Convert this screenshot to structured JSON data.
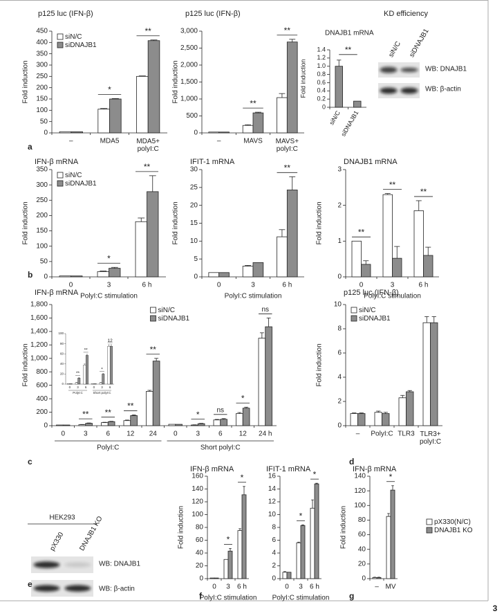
{
  "chart_data": [
    {
      "type": "bar",
      "title": "p125 luc (IFN-β)",
      "ylabel": "Fold induction",
      "categories": [
        "–",
        "MDA5",
        "MDA5+ polyI:C"
      ],
      "series": [
        {
          "name": "siN/C",
          "color": "#ffffff",
          "values": [
            5,
            105,
            250
          ],
          "errors": [
            0,
            3,
            2
          ]
        },
        {
          "name": "siDNAJB1",
          "color": "#8c8c8c",
          "values": [
            5,
            150,
            408
          ],
          "errors": [
            0,
            2,
            3
          ]
        }
      ],
      "significance": [
        null,
        "*",
        "**"
      ],
      "ylim": [
        0,
        450
      ],
      "yticks": [
        0,
        50,
        100,
        150,
        200,
        250,
        300,
        350,
        400,
        450
      ],
      "legend": "upper left"
    },
    {
      "type": "bar",
      "title": "p125 luc (IFN-β)",
      "ylabel": "Fold induction",
      "categories": [
        "–",
        "MAVS",
        "MAVS+ polyI:C"
      ],
      "series": [
        {
          "color": "#ffffff",
          "values": [
            25,
            220,
            1040
          ],
          "errors": [
            0,
            20,
            120
          ]
        },
        {
          "color": "#8c8c8c",
          "values": [
            25,
            590,
            2680
          ],
          "errors": [
            0,
            20,
            80
          ]
        }
      ],
      "significance": [
        null,
        "**",
        "**"
      ],
      "ylim": [
        0,
        3000
      ],
      "yticks": [
        0,
        500,
        {
          "value": 1000,
          "label": "1,000"
        },
        {
          "value": 1500,
          "label": "1,500"
        },
        {
          "value": 2000,
          "label": "2,000"
        },
        {
          "value": 2500,
          "label": "2,500"
        },
        {
          "value": 3000,
          "label": "3,000"
        }
      ]
    },
    {
      "type": "bar",
      "title": "DNAJB1 mRNA",
      "ylabel": "Fold induction",
      "categories": [
        "siN/C",
        "siDNAJB1"
      ],
      "series": [
        {
          "color": "#8c8c8c",
          "values": [
            1.0,
            0.15
          ],
          "errors": [
            0.15,
            0
          ]
        }
      ],
      "comparison": "**",
      "ylim": [
        0,
        1.4
      ],
      "yticks": [
        0,
        0.2,
        0.4,
        0.6,
        0.8,
        {
          "value": 1,
          "label": "1.0"
        },
        1.2,
        1.4
      ]
    },
    {
      "type": "bar",
      "title": "IFN-β mRNA",
      "ylabel": "Fold induction",
      "xlabel": "PolyI:C stimulation",
      "categories": [
        "0",
        "3",
        "6 h"
      ],
      "series": [
        {
          "name": "siN/C",
          "color": "#ffffff",
          "values": [
            3,
            17,
            180
          ],
          "errors": [
            0,
            2,
            12
          ]
        },
        {
          "name": "siDNAJB1",
          "color": "#8c8c8c",
          "values": [
            3,
            28,
            278
          ],
          "errors": [
            0,
            3,
            52
          ]
        }
      ],
      "significance": [
        null,
        "*",
        "**"
      ],
      "ylim": [
        0,
        350
      ],
      "yticks": [
        0,
        50,
        100,
        150,
        200,
        250,
        300,
        350
      ],
      "legend": "upper left"
    },
    {
      "type": "bar",
      "title": "IFIT-1 mRNA",
      "ylabel": "Fold induction",
      "xlabel": "PolyI:C stimulation",
      "categories": [
        "0",
        "3",
        "6 h"
      ],
      "series": [
        {
          "color": "#ffffff",
          "values": [
            1.2,
            3,
            11.2
          ],
          "errors": [
            0,
            0.2,
            2
          ]
        },
        {
          "color": "#8c8c8c",
          "values": [
            1.2,
            4,
            24.3
          ],
          "errors": [
            0,
            0,
            3.7
          ]
        }
      ],
      "significance": [
        null,
        null,
        "**"
      ],
      "ylim": [
        0,
        30
      ],
      "yticks": [
        0,
        5,
        10,
        15,
        20,
        25,
        30
      ]
    },
    {
      "type": "bar",
      "title": "DNAJB1 mRNA",
      "ylabel": "Fold induction",
      "xlabel": "PolyI:C stimulation",
      "categories": [
        "0",
        "3",
        "6 h"
      ],
      "series": [
        {
          "color": "#ffffff",
          "values": [
            1.0,
            2.3,
            1.85
          ],
          "errors": [
            0,
            0.03,
            0.28
          ]
        },
        {
          "color": "#8c8c8c",
          "values": [
            0.35,
            0.52,
            0.6
          ],
          "errors": [
            0.1,
            0.33,
            0.23
          ]
        }
      ],
      "significance": [
        "**",
        "**",
        "**"
      ],
      "ylim": [
        0,
        3
      ],
      "yticks": [
        0,
        1,
        2,
        3
      ]
    },
    {
      "type": "bar",
      "title": "IFN-β mRNA",
      "ylabel": "Fold induction",
      "categories": [
        "0",
        "3",
        "6",
        "12",
        "24",
        "0",
        "3",
        "6",
        "12",
        "24 h"
      ],
      "groups": [
        "PolyI:C",
        "Short polyI:C"
      ],
      "series": [
        {
          "name": "siN/C",
          "color": "#ffffff",
          "values": [
            10,
            15,
            45,
            75,
            510,
            20,
            10,
            85,
            180,
            1300
          ],
          "errors": [
            0,
            3,
            5,
            8,
            15,
            0,
            3,
            8,
            15,
            80
          ]
        },
        {
          "name": "siDNAJB1",
          "color": "#8c8c8c",
          "values": [
            10,
            35,
            60,
            150,
            960,
            20,
            30,
            95,
            260,
            1470
          ],
          "errors": [
            0,
            5,
            5,
            10,
            40,
            0,
            5,
            10,
            15,
            130
          ]
        }
      ],
      "significance": [
        null,
        "**",
        "**",
        "**",
        "**",
        null,
        "*",
        "ns",
        "*",
        "ns"
      ],
      "ylim": [
        0,
        1800
      ],
      "yticks": [
        0,
        200,
        400,
        600,
        800,
        {
          "value": 1000,
          "label": "1,000"
        },
        {
          "value": 1200,
          "label": "1,200"
        },
        {
          "value": 1400,
          "label": "1,400"
        },
        {
          "value": 1600,
          "label": "1,600"
        },
        {
          "value": 1800,
          "label": "1,800"
        }
      ],
      "legend": "upper center"
    },
    {
      "type": "bar",
      "categories": [
        "0",
        "3",
        "6",
        "0",
        "3",
        "6"
      ],
      "groups": [
        "PolyI:C",
        "Short polyI:C"
      ],
      "series": [
        {
          "color": "#ffffff",
          "values": [
            1,
            3,
            38,
            1,
            3,
            75
          ],
          "errors": [
            0,
            0.5,
            2,
            0,
            0.5,
            3
          ]
        },
        {
          "color": "#8c8c8c",
          "values": [
            1,
            12,
            57,
            1,
            20,
            75
          ],
          "errors": [
            0,
            1,
            2,
            0,
            1,
            3
          ]
        }
      ],
      "significance": [
        null,
        "**",
        "**",
        null,
        "*",
        "12"
      ],
      "ylim": [
        0,
        100
      ],
      "yticks": [
        0,
        20,
        40,
        60,
        80,
        100
      ]
    },
    {
      "type": "bar",
      "title": "p125 luc (IFN-β)",
      "ylabel": "Fold induction",
      "categories": [
        "–",
        "PolyI:C",
        "TLR3",
        "TLR3+ polyI:C"
      ],
      "series": [
        {
          "name": "siN/C",
          "color": "#ffffff",
          "values": [
            1,
            1.1,
            2.3,
            8.5
          ],
          "errors": [
            0.05,
            0.1,
            0.2,
            0.5
          ]
        },
        {
          "name": "siDNAJB1",
          "color": "#8c8c8c",
          "values": [
            1,
            1.0,
            2.8,
            8.5
          ],
          "errors": [
            0.05,
            0.1,
            0.1,
            0.5
          ]
        }
      ],
      "ylim": [
        0,
        10
      ],
      "yticks": [
        0,
        2,
        4,
        6,
        8,
        10
      ],
      "legend": "upper left"
    },
    {
      "type": "bar",
      "title": "IFN-β mRNA",
      "ylabel": "Fold induction",
      "xlabel": "PolyI:C stimulation",
      "categories": [
        "0",
        "3",
        "6 h"
      ],
      "series": [
        {
          "color": "#ffffff",
          "values": [
            1,
            30,
            75
          ],
          "errors": [
            0,
            0,
            3
          ]
        },
        {
          "color": "#8c8c8c",
          "values": [
            1,
            43,
            131
          ],
          "errors": [
            0,
            4,
            13
          ]
        }
      ],
      "significance": [
        null,
        "*",
        "*"
      ],
      "ylim": [
        0,
        160
      ],
      "yticks": [
        0,
        20,
        40,
        60,
        80,
        100,
        120,
        140,
        160
      ]
    },
    {
      "type": "bar",
      "title": "IFIT-1 mRNA",
      "xlabel": "PolyI:C stimulation",
      "categories": [
        "0",
        "3",
        "6 h"
      ],
      "series": [
        {
          "color": "#ffffff",
          "values": [
            1,
            5.6,
            11
          ],
          "errors": [
            0.1,
            0.1,
            1.3
          ]
        },
        {
          "color": "#8c8c8c",
          "values": [
            1,
            8.3,
            14.8
          ],
          "errors": [
            0,
            0.1,
            0.1
          ]
        }
      ],
      "significance": [
        null,
        "*",
        "*"
      ],
      "ylim": [
        0,
        16
      ],
      "yticks": [
        0,
        2,
        4,
        6,
        8,
        10,
        12,
        14,
        16
      ]
    },
    {
      "type": "bar",
      "title": "IFN-β mRNA",
      "ylabel": "Fold induction",
      "categories": [
        "–",
        "MV"
      ],
      "series": [
        {
          "name": "pX330(N/C)",
          "color": "#ffffff",
          "values": [
            1.5,
            85
          ],
          "errors": [
            0.5,
            4
          ]
        },
        {
          "name": "DNAJB1 KO",
          "color": "#8c8c8c",
          "values": [
            1.5,
            121
          ],
          "errors": [
            0.5,
            6
          ]
        }
      ],
      "significance": [
        null,
        "*"
      ],
      "ylim": [
        0,
        140
      ],
      "yticks": [
        0,
        20,
        40,
        60,
        80,
        100,
        120,
        140
      ],
      "legend": "right"
    }
  ],
  "blots": [
    {
      "title": "KD efficiency",
      "lanes": [
        "siN/C",
        "siDNAJB1"
      ],
      "rows": [
        "WB: DNAJB1",
        "WB: β-actin"
      ]
    },
    {
      "title": "HEK293",
      "lanes": [
        "pX330",
        "DNAJB1 KO"
      ],
      "rows": [
        "WB: DNAJB1",
        "WB: β-actin"
      ]
    }
  ],
  "panel_labels": [
    "a",
    "b",
    "c",
    "d",
    "e",
    "f",
    "g"
  ],
  "figure_number": "3"
}
